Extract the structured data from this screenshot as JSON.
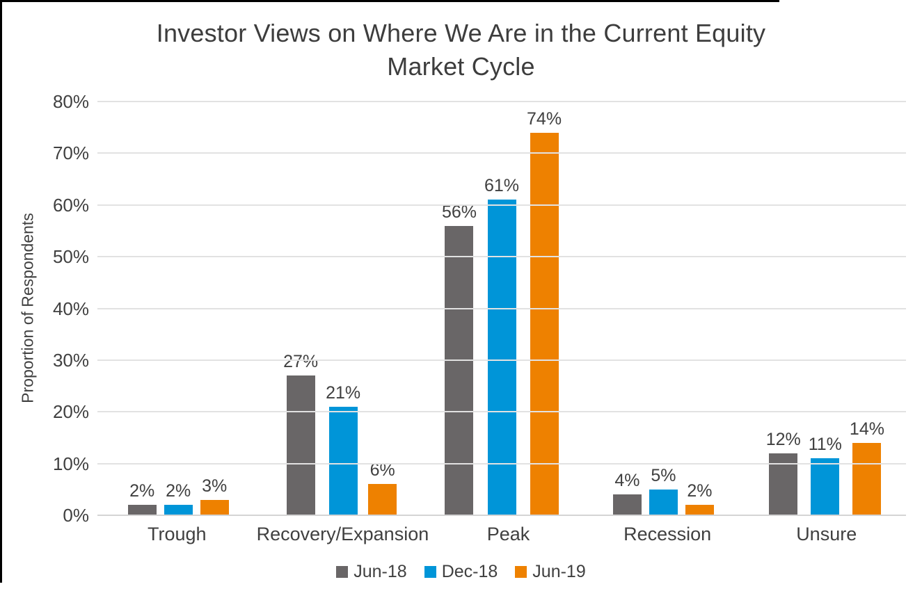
{
  "chart_data": {
    "type": "bar",
    "title": "Investor Views on Where We Are in the Current Equity Market Cycle",
    "ylabel": "Proportion of Respondents",
    "xlabel": "",
    "categories": [
      "Trough",
      "Recovery/Expansion",
      "Peak",
      "Recession",
      "Unsure"
    ],
    "series": [
      {
        "name": "Jun-18",
        "color": "#696667",
        "values": [
          2,
          27,
          56,
          4,
          12
        ],
        "labels": [
          "2%",
          "27%",
          "56%",
          "4%",
          "12%"
        ]
      },
      {
        "name": "Dec-18",
        "color": "#0095d8",
        "values": [
          2,
          21,
          61,
          5,
          11
        ],
        "labels": [
          "2%",
          "21%",
          "61%",
          "5%",
          "11%"
        ]
      },
      {
        "name": "Jun-19",
        "color": "#ee8100",
        "values": [
          3,
          6,
          74,
          2,
          14
        ],
        "labels": [
          "3%",
          "6%",
          "74%",
          "2%",
          "14%"
        ]
      }
    ],
    "ylim": [
      0,
      80
    ],
    "ytick_step": 10,
    "ytick_labels": [
      "0%",
      "10%",
      "20%",
      "30%",
      "40%",
      "50%",
      "60%",
      "70%",
      "80%"
    ],
    "grid": "horizontal",
    "legend_position": "bottom"
  },
  "colors": {
    "background": "#ffffff",
    "frame": "#000000",
    "gridline": "#e2e2e2",
    "axis_line": "#d4d4d4",
    "text": "#404040",
    "title_text": "#3d3d3d"
  }
}
